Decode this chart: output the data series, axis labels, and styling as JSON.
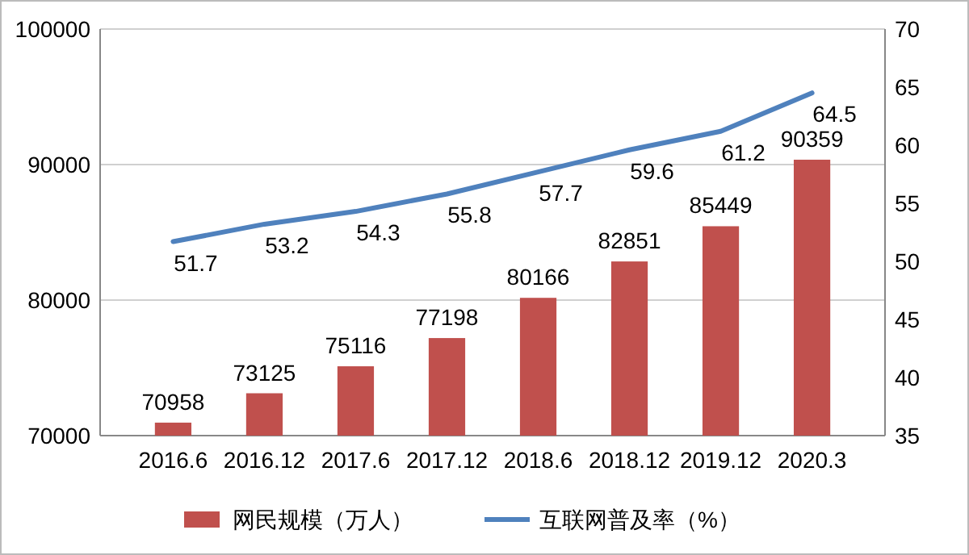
{
  "chart_data": {
    "type": "bar",
    "categories": [
      "2016.6",
      "2016.12",
      "2017.6",
      "2017.12",
      "2018.6",
      "2018.12",
      "2019.12",
      "2020.3"
    ],
    "series": [
      {
        "name": "网民规模（万人）",
        "color": "#c0504d",
        "values": [
          70958,
          73125,
          75116,
          77198,
          80166,
          82851,
          85449,
          90359
        ]
      },
      {
        "name": "互联网普及率（%）",
        "type": "line",
        "axis": "y2",
        "color": "#4f81bd",
        "values": [
          51.7,
          53.2,
          54.3,
          55.8,
          57.7,
          59.6,
          61.2,
          64.5
        ]
      }
    ],
    "ylim": [
      70000,
      100000
    ],
    "yticks": [
      70000,
      80000,
      90000,
      100000
    ],
    "y2lim": [
      35,
      70
    ],
    "y2ticks": [
      35,
      40,
      45,
      50,
      55,
      60,
      65,
      70
    ],
    "grid": "y",
    "legend": "bottom",
    "data_labels": true,
    "marker": "none"
  }
}
